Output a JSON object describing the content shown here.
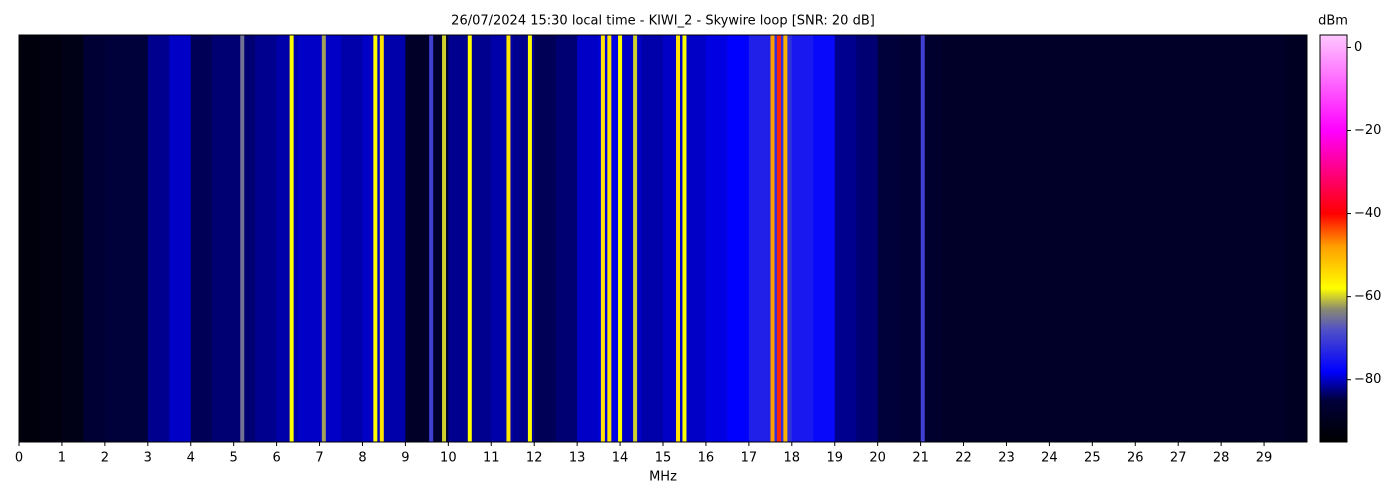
{
  "chart_data": {
    "type": "waterfall",
    "title": "26/07/2024 15:30 local time - KIWI_2 - Skywire loop [SNR: 20 dB]",
    "xlabel": "MHz",
    "colorbar_label": "dBm",
    "xlim": [
      0,
      30
    ],
    "xticks": [
      0,
      1,
      2,
      3,
      4,
      5,
      6,
      7,
      8,
      9,
      10,
      11,
      12,
      13,
      14,
      15,
      16,
      17,
      18,
      19,
      20,
      21,
      22,
      23,
      24,
      25,
      26,
      27,
      28,
      29
    ],
    "clim": [
      -95,
      3
    ],
    "cticks": [
      0,
      {
        "value": -20,
        "label": "−20"
      },
      {
        "value": -40,
        "label": "−40"
      },
      {
        "value": -60,
        "label": "−60"
      },
      {
        "value": -80,
        "label": "−80"
      }
    ],
    "colormap": [
      {
        "value": -95,
        "color": "#000000"
      },
      {
        "value": -85,
        "color": "#00003a"
      },
      {
        "value": -78,
        "color": "#0000ff"
      },
      {
        "value": -68,
        "color": "#5050c8"
      },
      {
        "value": -63,
        "color": "#8a8a70"
      },
      {
        "value": -58,
        "color": "#ffff00"
      },
      {
        "value": -48,
        "color": "#ffa000"
      },
      {
        "value": -40,
        "color": "#ff0000"
      },
      {
        "value": -30,
        "color": "#ff0080"
      },
      {
        "value": -20,
        "color": "#ff00ff"
      },
      {
        "value": 3,
        "color": "#ffc8ff"
      }
    ],
    "x": [
      0.25,
      0.75,
      1.25,
      1.75,
      2.25,
      2.75,
      3.25,
      3.75,
      4.25,
      4.75,
      5.25,
      5.75,
      6.25,
      6.75,
      7.25,
      7.75,
      8.25,
      8.75,
      9.25,
      9.75,
      10.25,
      10.75,
      11.25,
      11.75,
      12.25,
      12.75,
      13.25,
      13.75,
      14.25,
      14.75,
      15.25,
      15.75,
      16.25,
      16.75,
      17.25,
      17.75,
      18.25,
      18.75,
      19.25,
      19.75,
      20.25,
      20.75,
      21.25,
      21.75,
      22.25,
      22.75,
      23.25,
      23.75,
      24.25,
      24.75,
      25.25,
      25.75,
      26.25,
      26.75,
      27.25,
      27.75,
      28.25,
      28.75,
      29.25,
      29.75
    ],
    "values": [
      -93,
      -92,
      -91,
      -86,
      -85,
      -85,
      -82,
      -80,
      -84,
      -83,
      -83,
      -82,
      -81,
      -80,
      -80,
      -81,
      -80,
      -81,
      -88,
      -87,
      -82,
      -82,
      -81,
      -82,
      -84,
      -83,
      -80,
      -79,
      -80,
      -81,
      -80,
      -80,
      -79,
      -78,
      -74,
      -72,
      -75,
      -77,
      -82,
      -83,
      -85,
      -86,
      -87,
      -88,
      -88,
      -88,
      -88,
      -88,
      -88,
      -88,
      -88,
      -88,
      -88,
      -88,
      -88,
      -88,
      -88,
      -88,
      -88,
      -89
    ],
    "signals": {
      "x": [
        5.2,
        6.35,
        7.1,
        8.3,
        8.45,
        9.6,
        9.9,
        10.5,
        11.4,
        11.9,
        13.6,
        13.75,
        14.0,
        14.35,
        15.35,
        15.5,
        17.55,
        17.7,
        17.85,
        21.05
      ],
      "values": [
        -65,
        -58,
        -62,
        -58,
        -55,
        -70,
        -60,
        -58,
        -55,
        -58,
        -55,
        -55,
        -58,
        -60,
        -55,
        -58,
        -48,
        -42,
        -50,
        -70
      ]
    }
  }
}
